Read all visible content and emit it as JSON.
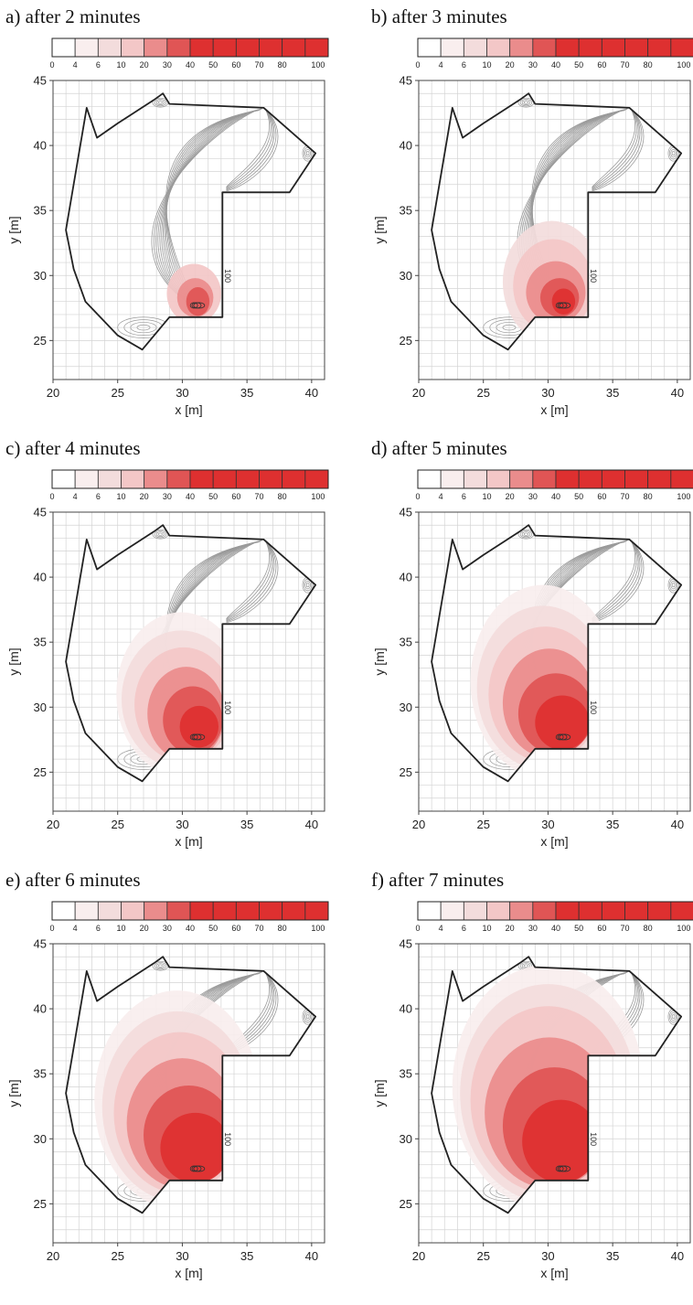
{
  "chart_data": {
    "type": "heatmap",
    "description_of_layout": "small-multiples",
    "colorbar": {
      "ticks": [
        "0",
        "4",
        "6",
        "10",
        "20",
        "30",
        "40",
        "50",
        "60",
        "70",
        "80",
        "100"
      ],
      "colors": [
        "#ffffff",
        "#f9eeee",
        "#f3dcdc",
        "#f3c7c7",
        "#ea8c8c",
        "#e05555",
        "#de3030",
        "#de3030",
        "#de3030",
        "#de3030",
        "#de3030",
        "#de3030"
      ]
    },
    "xaxis": {
      "label": "x [m]",
      "range": [
        20,
        41
      ],
      "ticks": [
        "20",
        "25",
        "30",
        "35",
        "40"
      ]
    },
    "yaxis": {
      "label": "y [m]",
      "range": [
        22,
        45
      ],
      "ticks": [
        "25",
        "30",
        "35",
        "40",
        "45"
      ]
    },
    "contour_label": "100",
    "boundary": [
      [
        22.6,
        42.9
      ],
      [
        21.0,
        33.5
      ],
      [
        21.6,
        30.5
      ],
      [
        22.5,
        28.0
      ],
      [
        25.0,
        25.4
      ],
      [
        26.9,
        24.3
      ],
      [
        29.0,
        26.8
      ],
      [
        33.1,
        26.8
      ],
      [
        33.1,
        36.4
      ],
      [
        38.3,
        36.4
      ],
      [
        40.3,
        39.4
      ],
      [
        36.3,
        42.9
      ],
      [
        29.0,
        43.2
      ],
      [
        28.5,
        44.0
      ],
      [
        27.8,
        43.5
      ],
      [
        25.0,
        41.7
      ],
      [
        23.4,
        40.6
      ]
    ],
    "panels": [
      {
        "id": "a",
        "title": "a) after 2 minutes",
        "minutes": 2
      },
      {
        "id": "b",
        "title": "b) after 3 minutes",
        "minutes": 3
      },
      {
        "id": "c",
        "title": "c) after 4 minutes",
        "minutes": 4
      },
      {
        "id": "d",
        "title": "d) after 5 minutes",
        "minutes": 5
      },
      {
        "id": "e",
        "title": "e) after 6 minutes",
        "minutes": 6
      },
      {
        "id": "f",
        "title": "f) after 7 minutes",
        "minutes": 7
      }
    ],
    "plume_levels": [
      {
        "panel": "a",
        "levels": [
          {
            "color": "#f3c7c7",
            "cx": 30.9,
            "cy": 28.6,
            "rx": 2.1,
            "ry": 2.3
          },
          {
            "color": "#ea8c8c",
            "cx": 31.0,
            "cy": 28.3,
            "rx": 1.4,
            "ry": 1.5
          },
          {
            "color": "#e05555",
            "cx": 31.2,
            "cy": 28.0,
            "rx": 0.9,
            "ry": 1.1
          }
        ]
      },
      {
        "panel": "b",
        "levels": [
          {
            "color": "#f3dcdc",
            "cx": 30.3,
            "cy": 29.5,
            "rx": 3.8,
            "ry": 4.7
          },
          {
            "color": "#f3c7c7",
            "cx": 30.4,
            "cy": 29.2,
            "rx": 3.1,
            "ry": 3.6
          },
          {
            "color": "#ea8c8c",
            "cx": 30.6,
            "cy": 28.7,
            "rx": 2.3,
            "ry": 2.4
          },
          {
            "color": "#e05555",
            "cx": 30.9,
            "cy": 28.3,
            "rx": 1.5,
            "ry": 1.5
          },
          {
            "color": "#de3030",
            "cx": 31.2,
            "cy": 28.0,
            "rx": 0.9,
            "ry": 1.0
          }
        ]
      },
      {
        "panel": "c",
        "levels": [
          {
            "color": "#f9eeee",
            "cx": 29.9,
            "cy": 31.0,
            "rx": 5.0,
            "ry": 6.3
          },
          {
            "color": "#f3dcdc",
            "cx": 29.9,
            "cy": 30.6,
            "rx": 4.6,
            "ry": 5.3
          },
          {
            "color": "#f3c7c7",
            "cx": 30.1,
            "cy": 30.2,
            "rx": 3.8,
            "ry": 4.4
          },
          {
            "color": "#ea8c8c",
            "cx": 30.3,
            "cy": 29.5,
            "rx": 3.0,
            "ry": 3.6
          },
          {
            "color": "#e05555",
            "cx": 30.8,
            "cy": 29.0,
            "rx": 2.3,
            "ry": 2.6
          },
          {
            "color": "#de3030",
            "cx": 31.3,
            "cy": 28.5,
            "rx": 1.5,
            "ry": 1.6
          }
        ]
      },
      {
        "panel": "d",
        "levels": [
          {
            "color": "#f9eeee",
            "cx": 29.6,
            "cy": 32.0,
            "rx": 5.6,
            "ry": 7.4
          },
          {
            "color": "#f3dcdc",
            "cx": 29.6,
            "cy": 31.5,
            "rx": 5.1,
            "ry": 6.3
          },
          {
            "color": "#f3c7c7",
            "cx": 29.8,
            "cy": 31.0,
            "rx": 4.4,
            "ry": 5.2
          },
          {
            "color": "#ea8c8c",
            "cx": 30.1,
            "cy": 30.3,
            "rx": 3.6,
            "ry": 4.2
          },
          {
            "color": "#e05555",
            "cx": 30.6,
            "cy": 29.5,
            "rx": 2.9,
            "ry": 3.1
          },
          {
            "color": "#de3030",
            "cx": 31.1,
            "cy": 28.8,
            "rx": 2.1,
            "ry": 2.1
          }
        ]
      },
      {
        "panel": "e",
        "levels": [
          {
            "color": "#f9eeee",
            "cx": 29.6,
            "cy": 33.0,
            "rx": 6.4,
            "ry": 8.4
          },
          {
            "color": "#f3dcdc",
            "cx": 29.6,
            "cy": 32.5,
            "rx": 5.8,
            "ry": 7.3
          },
          {
            "color": "#f3c7c7",
            "cx": 29.8,
            "cy": 32.0,
            "rx": 5.1,
            "ry": 6.2
          },
          {
            "color": "#ea8c8c",
            "cx": 30.0,
            "cy": 31.2,
            "rx": 4.3,
            "ry": 5.0
          },
          {
            "color": "#e05555",
            "cx": 30.5,
            "cy": 30.3,
            "rx": 3.5,
            "ry": 3.8
          },
          {
            "color": "#de3030",
            "cx": 31.0,
            "cy": 29.3,
            "rx": 2.7,
            "ry": 2.7
          }
        ]
      },
      {
        "panel": "f",
        "levels": [
          {
            "color": "#f9eeee",
            "cx": 30.0,
            "cy": 34.0,
            "rx": 7.4,
            "ry": 9.4
          },
          {
            "color": "#f3dcdc",
            "cx": 30.0,
            "cy": 33.5,
            "rx": 6.8,
            "ry": 8.4
          },
          {
            "color": "#f3c7c7",
            "cx": 30.0,
            "cy": 33.0,
            "rx": 6.0,
            "ry": 7.2
          },
          {
            "color": "#ea8c8c",
            "cx": 30.1,
            "cy": 32.0,
            "rx": 5.0,
            "ry": 5.8
          },
          {
            "color": "#e05555",
            "cx": 30.5,
            "cy": 31.0,
            "rx": 4.0,
            "ry": 4.5
          },
          {
            "color": "#de3030",
            "cx": 31.0,
            "cy": 29.8,
            "rx": 3.0,
            "ry": 3.2
          }
        ]
      }
    ]
  }
}
